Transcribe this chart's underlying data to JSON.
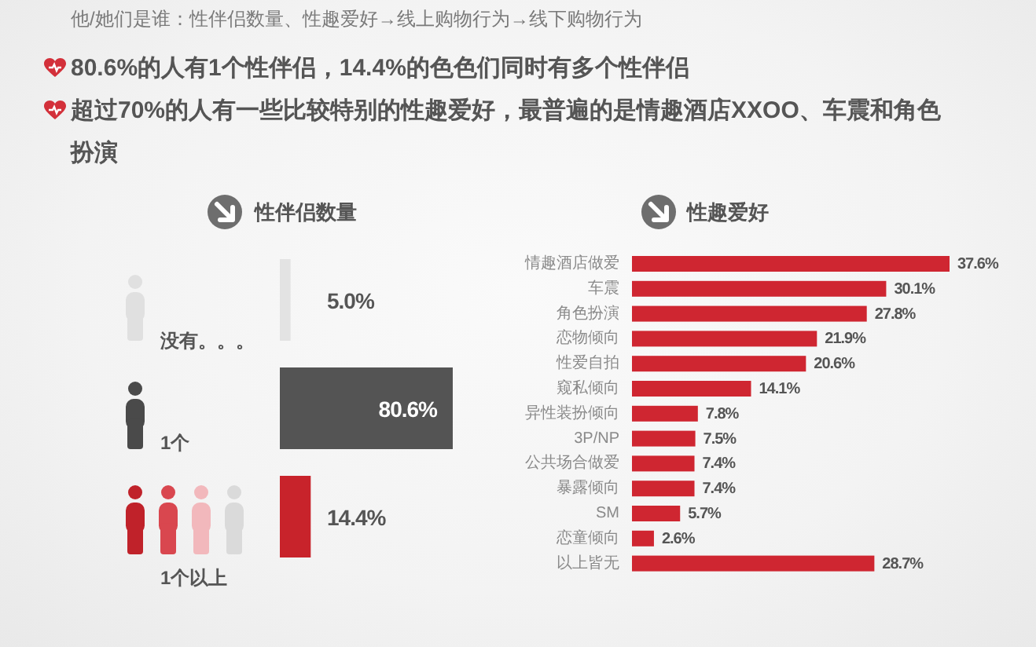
{
  "chart_data": [
    {
      "type": "other",
      "title": "他/她们是谁：性伴侣数量、性趣爱好→线上购物行为→线下购物行为",
      "annotations": [
        "80.6%的人有1个性伴侣，14.4%的色色们同时有多个性伴侣",
        "超过70%的人有一些比较特别的性趣爱好，最普遍的是情趣酒店XXOO、车震和角色扮演"
      ]
    },
    {
      "type": "bar",
      "orientation": "horizontal",
      "title": "性伴侣数量",
      "categories": [
        "没有。。。",
        "1个",
        "1个以上"
      ],
      "values": [
        5.0,
        80.6,
        14.4
      ],
      "colors": [
        "#e3e3e3",
        "#545454",
        "#c8232b"
      ],
      "value_labels": [
        "5.0%",
        "80.6%",
        "14.4%"
      ]
    },
    {
      "type": "bar",
      "orientation": "horizontal",
      "title": "性趣爱好",
      "categories": [
        "情趣酒店做爱",
        "车震",
        "角色扮演",
        "恋物倾向",
        "性爱自拍",
        "窥私倾向",
        "异性装扮倾向",
        "3P/NP",
        "公共场合做爱",
        "暴露倾向",
        "SM",
        "恋童倾向",
        "以上皆无"
      ],
      "values": [
        37.6,
        30.1,
        27.8,
        21.9,
        20.6,
        14.1,
        7.8,
        7.5,
        7.4,
        7.4,
        5.7,
        2.6,
        28.7
      ],
      "color": "#cf2631",
      "value_labels": [
        "37.6%",
        "30.1%",
        "27.8%",
        "21.9%",
        "20.6%",
        "14.1%",
        "7.8%",
        "7.5%",
        "7.4%",
        "7.4%",
        "5.7%",
        "2.6%",
        "28.7%"
      ]
    }
  ]
}
